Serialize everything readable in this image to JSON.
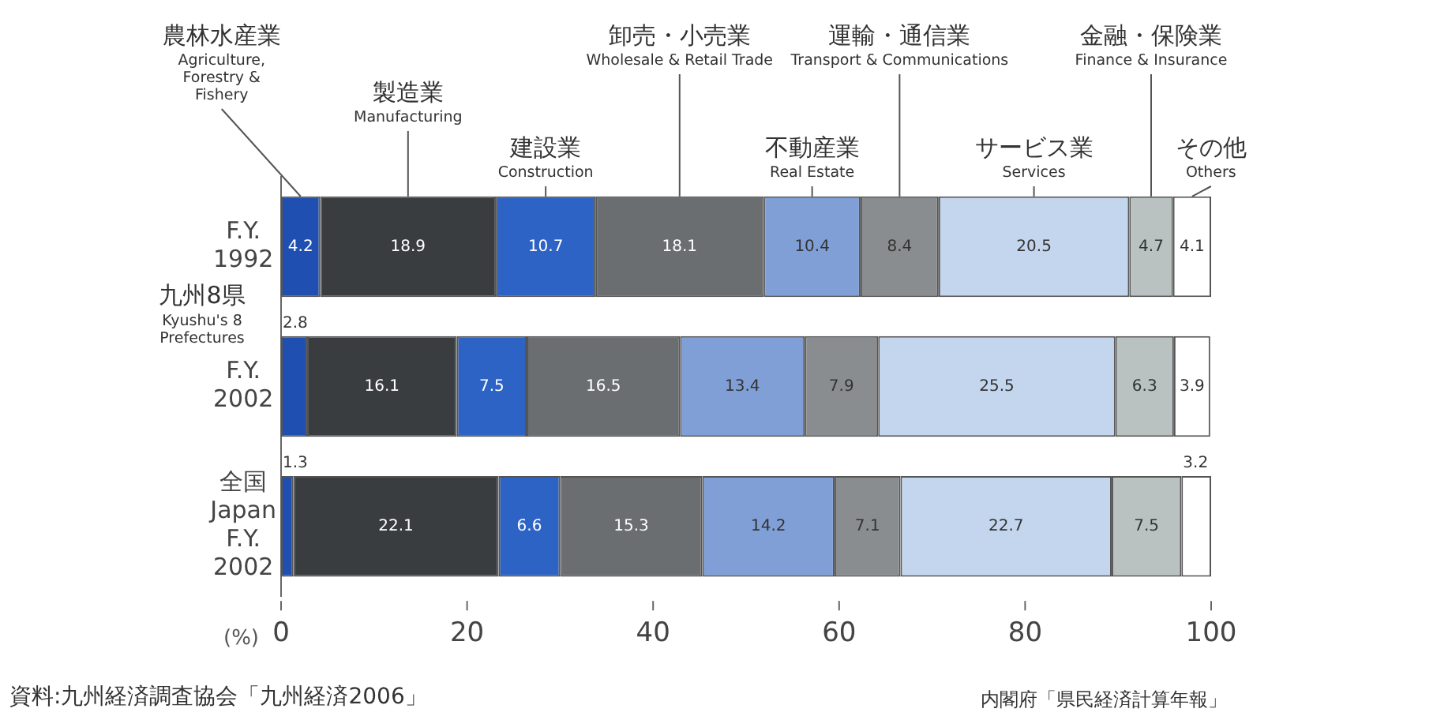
{
  "chart_data": {
    "type": "bar",
    "orientation": "horizontal",
    "stacked": true,
    "data_labels": true,
    "grid": false,
    "legend": false,
    "categories": [
      "F.Y.\n1992",
      "F.Y.\n2002",
      "全国\nJapan\nF.Y.\n2002"
    ],
    "series": [
      {
        "name": "農林水産業\nAgriculture,\nForestry &\nFishery",
        "color": "#1f4fb0",
        "values": [
          4.2,
          2.8,
          1.3
        ]
      },
      {
        "name": "製造業\nManufacturing",
        "color": "#3a3d40",
        "values": [
          18.9,
          16.1,
          22.1
        ]
      },
      {
        "name": "建設業\nConstruction",
        "color": "#2d63c4",
        "values": [
          10.7,
          7.5,
          6.6
        ]
      },
      {
        "name": "卸売・小売業\nWholesale & Retail Trade",
        "color": "#6b6e70",
        "values": [
          18.1,
          16.5,
          15.3
        ]
      },
      {
        "name": "不動産業\nReal Estate",
        "color": "#7f9fd6",
        "values": [
          10.4,
          13.4,
          14.2
        ]
      },
      {
        "name": "運輸・通信業\nTransport & Communications",
        "color": "#8a8d8f",
        "values": [
          8.4,
          7.9,
          7.1
        ]
      },
      {
        "name": "サービス業\nServices",
        "color": "#c4d6ee",
        "values": [
          20.5,
          25.5,
          22.7
        ]
      },
      {
        "name": "金融・保険業\nFinance & Insurance",
        "color": "#b9c1c1",
        "values": [
          4.7,
          6.3,
          7.5
        ]
      },
      {
        "name": "その他\nOthers",
        "color": "#ffffff",
        "values": [
          4.1,
          3.9,
          3.2
        ]
      }
    ],
    "xlim": [
      0,
      100
    ],
    "xticks": [
      0,
      20,
      40,
      60,
      80,
      100
    ],
    "xlabel": "(%)",
    "annotations": [
      "九州8県\nKyushu's 8\nPrefectures",
      "資料:九州経済調査協会「九州経済2006」",
      "内閣府「県民経済計算年報」"
    ]
  }
}
